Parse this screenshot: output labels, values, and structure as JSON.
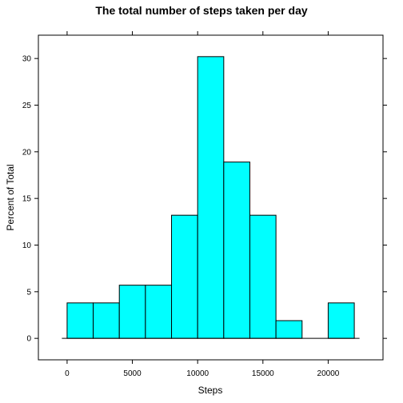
{
  "chart_data": {
    "type": "bar",
    "title": "The total number of steps taken per day",
    "xlabel": "Steps",
    "ylabel": "Percent of Total",
    "xlim": [
      -2200,
      24200
    ],
    "ylim": [
      -2.3,
      32.5
    ],
    "x_ticks": [
      0,
      5000,
      10000,
      15000,
      20000
    ],
    "y_ticks": [
      0,
      5,
      10,
      15,
      20,
      25,
      30
    ],
    "bins": [
      {
        "start": 0,
        "end": 2000,
        "value": 3.8
      },
      {
        "start": 2000,
        "end": 4000,
        "value": 3.8
      },
      {
        "start": 4000,
        "end": 6000,
        "value": 5.7
      },
      {
        "start": 6000,
        "end": 8000,
        "value": 5.7
      },
      {
        "start": 8000,
        "end": 10000,
        "value": 13.2
      },
      {
        "start": 10000,
        "end": 12000,
        "value": 30.2
      },
      {
        "start": 12000,
        "end": 14000,
        "value": 18.9
      },
      {
        "start": 14000,
        "end": 16000,
        "value": 13.2
      },
      {
        "start": 16000,
        "end": 18000,
        "value": 1.9
      },
      {
        "start": 18000,
        "end": 20000,
        "value": 0
      },
      {
        "start": 20000,
        "end": 22000,
        "value": 3.8
      }
    ],
    "bar_color": "#00ffff",
    "bar_stroke": "#000000",
    "grid": false,
    "legend": "none"
  }
}
